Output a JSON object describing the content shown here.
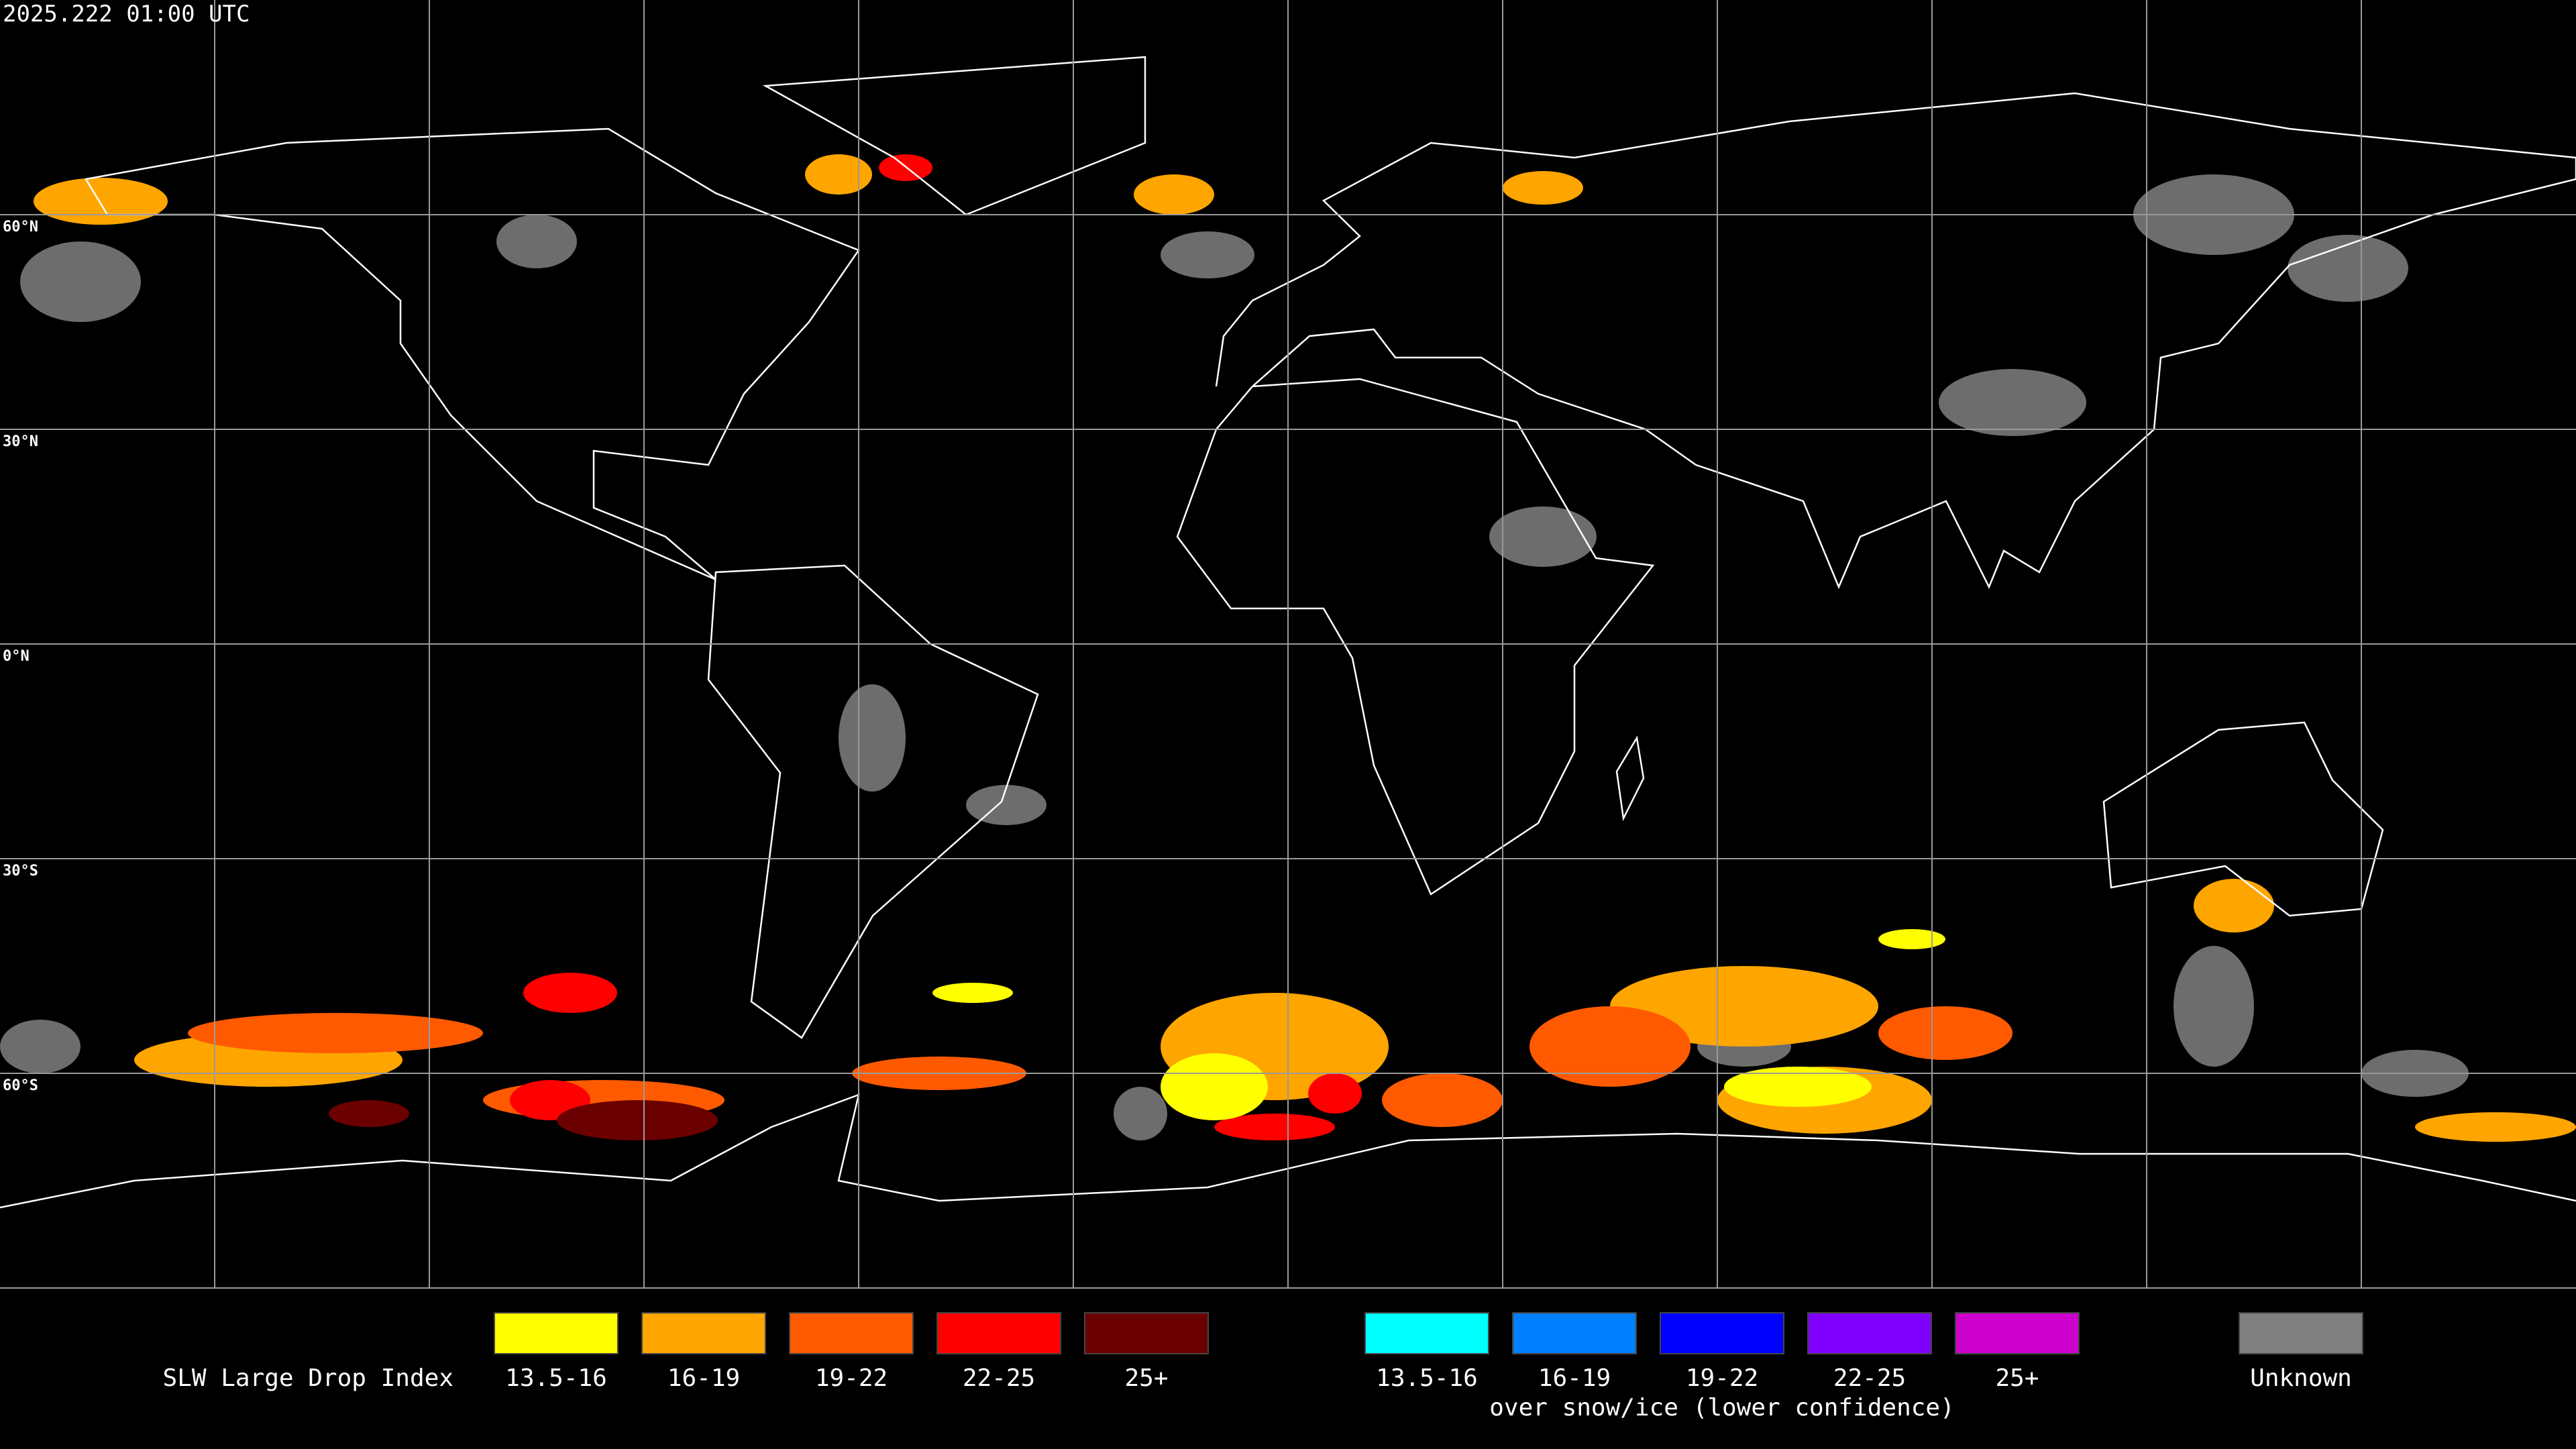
{
  "header": {
    "timestamp": "2025.222 01:00 UTC"
  },
  "lat_labels": [
    "60°N",
    "30°N",
    "0°N",
    "30°S",
    "60°S"
  ],
  "legend": {
    "title": "SLW Large Drop Index",
    "groups": [
      {
        "items": [
          {
            "label": "13.5-16",
            "color": "#ffff00"
          },
          {
            "label": "16-19",
            "color": "#ffa500"
          },
          {
            "label": "19-22",
            "color": "#ff5a00"
          },
          {
            "label": "22-25",
            "color": "#ff0000"
          },
          {
            "label": "25+",
            "color": "#6b0000"
          }
        ]
      },
      {
        "items": [
          {
            "label": "13.5-16",
            "color": "#00ffff"
          },
          {
            "label": "16-19",
            "color": "#0080ff"
          },
          {
            "label": "19-22",
            "color": "#0000ff"
          },
          {
            "label": "22-25",
            "color": "#8000ff"
          },
          {
            "label": "25+",
            "color": "#cc00cc"
          }
        ],
        "caption": "over snow/ice (lower confidence)"
      }
    ],
    "unknown": {
      "label": "Unknown",
      "color": "#808080"
    }
  }
}
